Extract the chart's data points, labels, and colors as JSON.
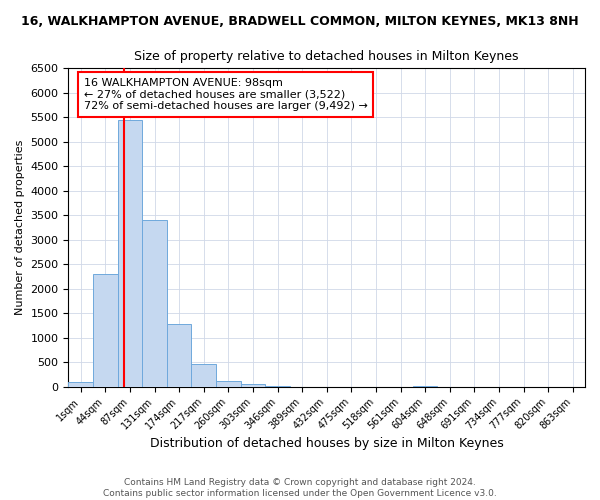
{
  "title": "16, WALKHAMPTON AVENUE, BRADWELL COMMON, MILTON KEYNES, MK13 8NH",
  "subtitle": "Size of property relative to detached houses in Milton Keynes",
  "xlabel": "Distribution of detached houses by size in Milton Keynes",
  "ylabel": "Number of detached properties",
  "bins": [
    "1sqm",
    "44sqm",
    "87sqm",
    "131sqm",
    "174sqm",
    "217sqm",
    "260sqm",
    "303sqm",
    "346sqm",
    "389sqm",
    "432sqm",
    "475sqm",
    "518sqm",
    "561sqm",
    "604sqm",
    "648sqm",
    "691sqm",
    "734sqm",
    "777sqm",
    "820sqm",
    "863sqm"
  ],
  "counts": [
    100,
    2300,
    5450,
    3400,
    1280,
    460,
    120,
    50,
    5,
    0,
    0,
    0,
    0,
    0,
    5,
    0,
    0,
    0,
    0,
    0,
    0
  ],
  "bar_color": "#c5d8f0",
  "bar_edge_color": "#6fa8dc",
  "grid_color": "#d0d8e8",
  "ylim": [
    0,
    6500
  ],
  "yticks": [
    0,
    500,
    1000,
    1500,
    2000,
    2500,
    3000,
    3500,
    4000,
    4500,
    5000,
    5500,
    6000,
    6500
  ],
  "property_bin_index": 2,
  "red_line_color": "red",
  "annotation_text": "16 WALKHAMPTON AVENUE: 98sqm\n← 27% of detached houses are smaller (3,522)\n72% of semi-detached houses are larger (9,492) →",
  "annotation_box_color": "white",
  "annotation_box_edge": "red",
  "footer_line1": "Contains HM Land Registry data © Crown copyright and database right 2024.",
  "footer_line2": "Contains public sector information licensed under the Open Government Licence v3.0.",
  "background_color": "white",
  "title_fontsize": 9,
  "subtitle_fontsize": 9
}
